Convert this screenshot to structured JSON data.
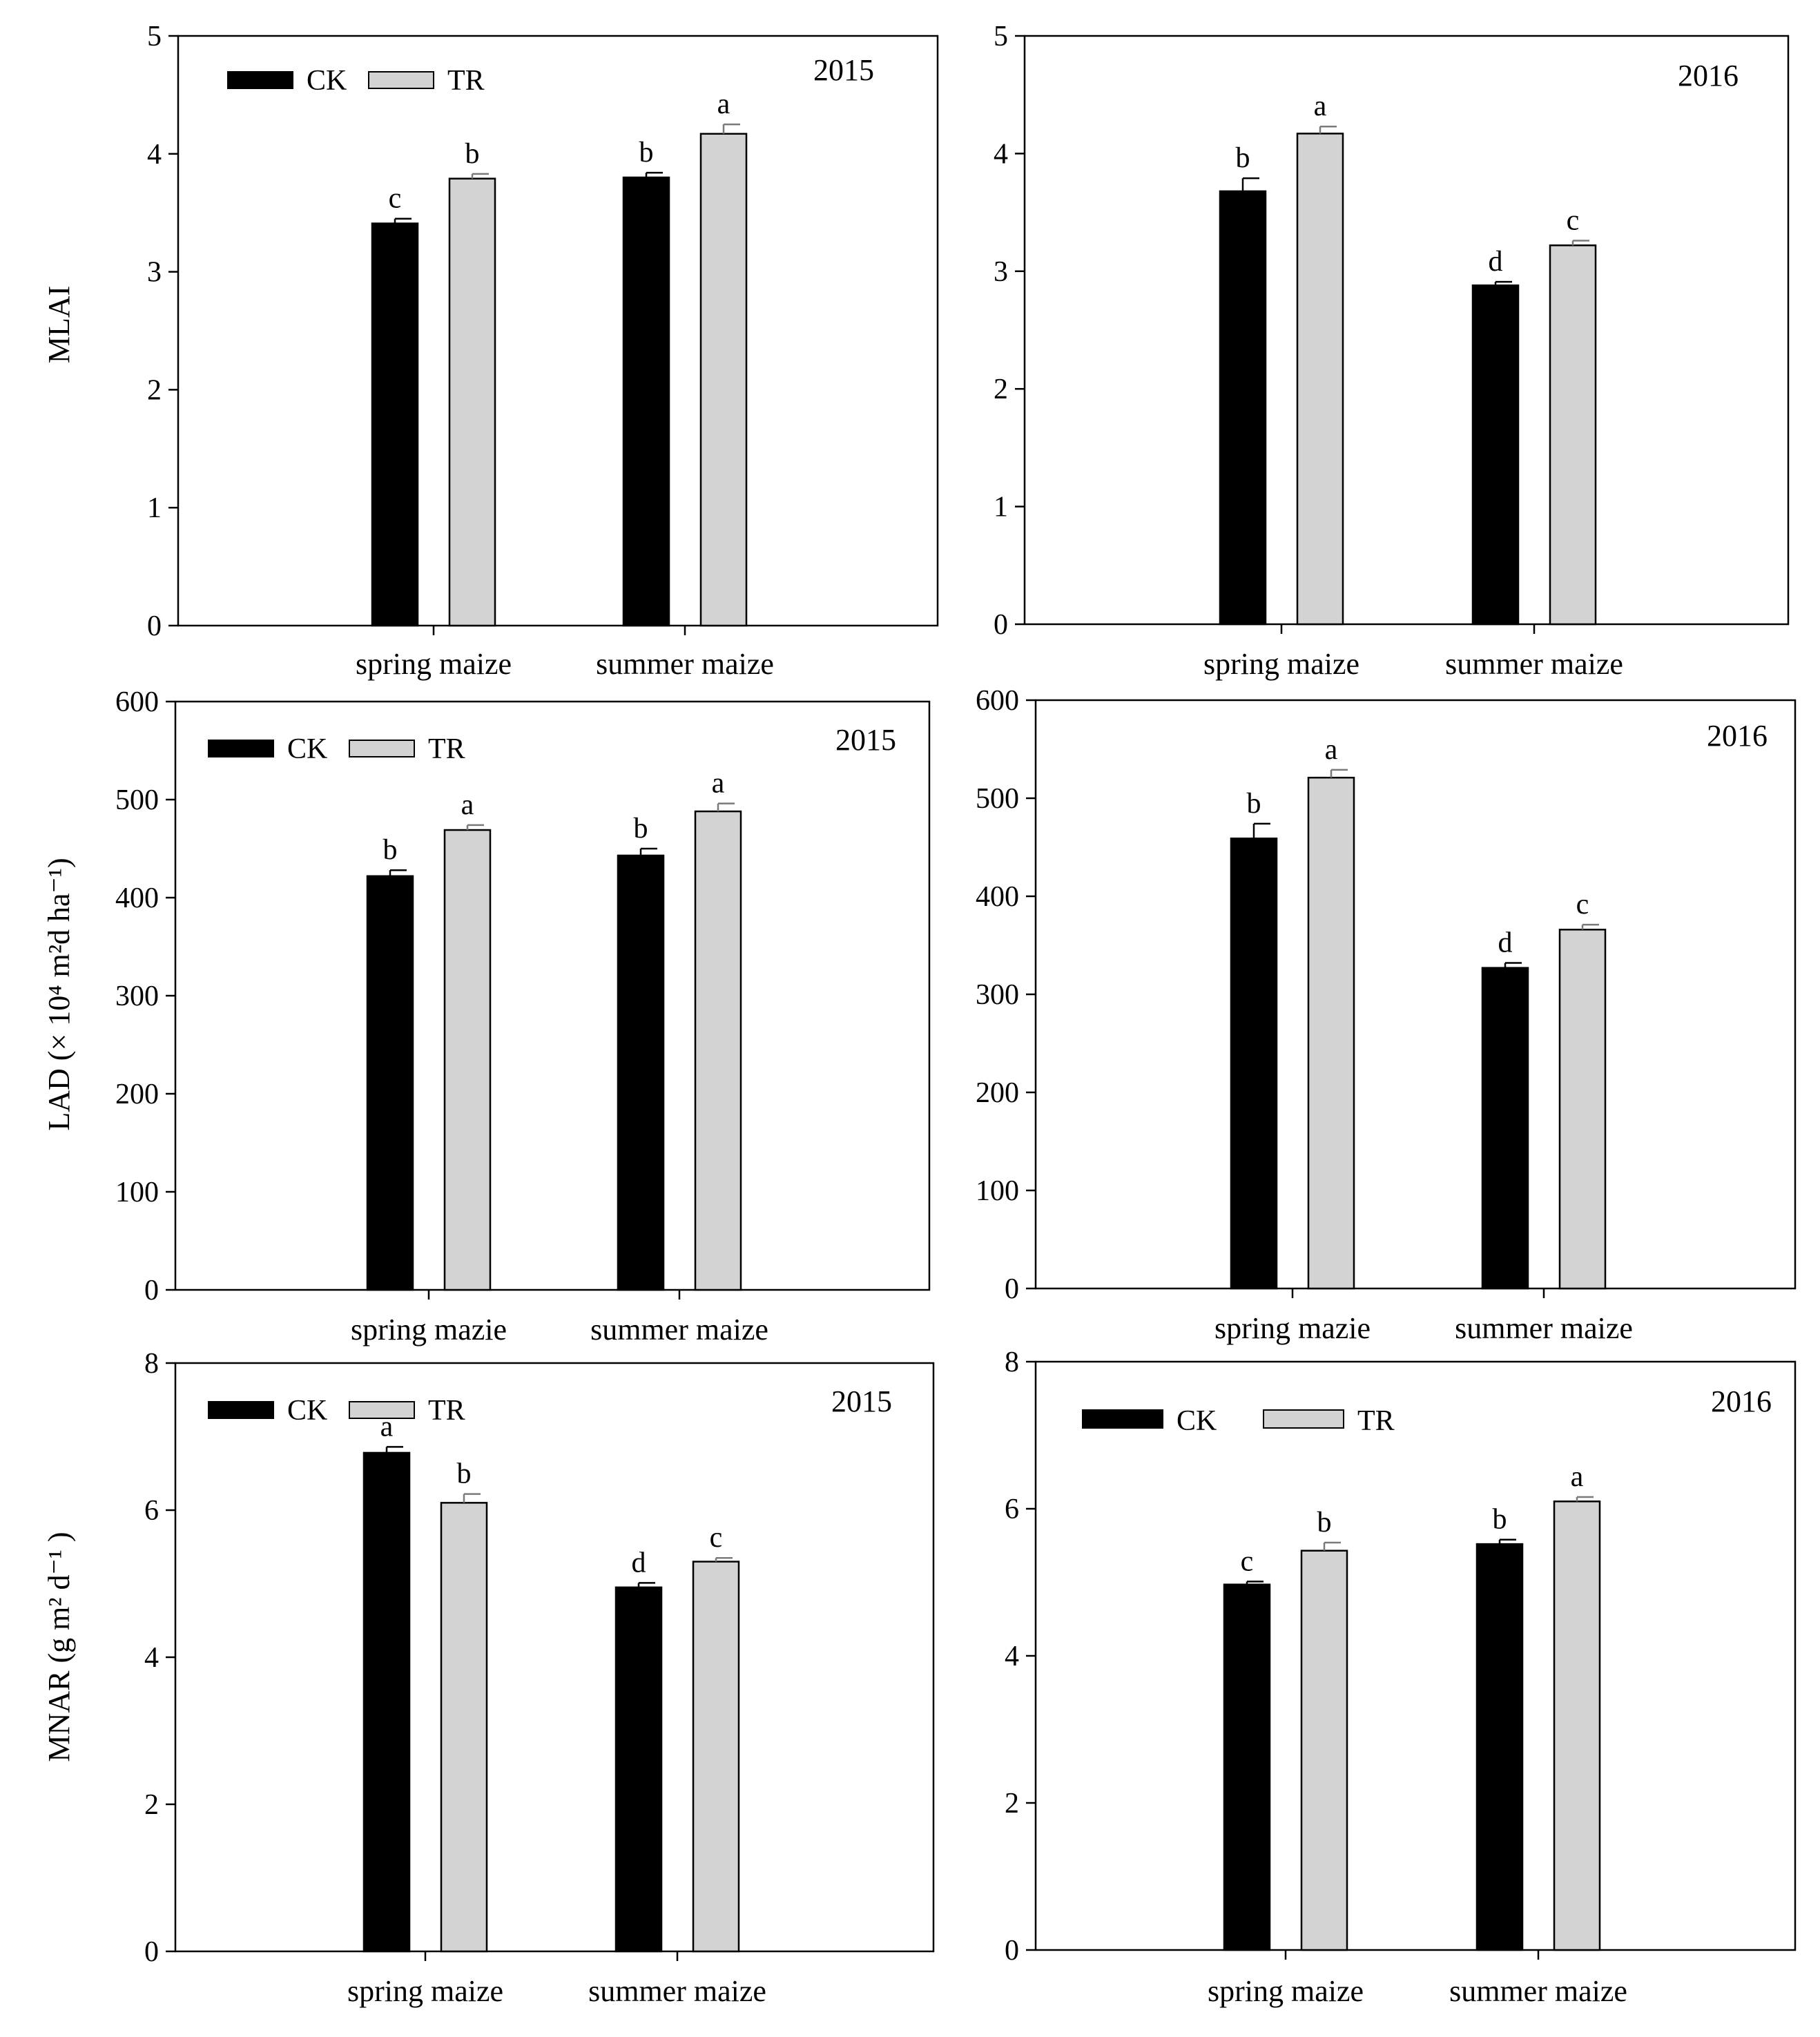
{
  "figure": {
    "description_panels": "2x3 grid of grouped bar charts comparing CK and TR"
  },
  "legend_labels": {
    "ck": "CK",
    "tr": "TR"
  },
  "colors": {
    "ck": "#000000",
    "tr": "#d3d3d3",
    "axis": "#000000"
  },
  "row_ylabels": {
    "mlai": "MLAI",
    "lad": "LAD (× 10⁴ m²d ha⁻¹)",
    "mnar": "MNAR (g m² d⁻¹ )"
  },
  "chart_data": [
    {
      "id": "mlai-2015",
      "type": "bar",
      "title": "2015",
      "ylabel": "MLAI",
      "categories": [
        "spring maize",
        "summer maize"
      ],
      "series": [
        {
          "name": "CK",
          "values": [
            3.41,
            3.8
          ],
          "errors": [
            0.04,
            0.04
          ],
          "letters": [
            "c",
            "b"
          ]
        },
        {
          "name": "TR",
          "values": [
            3.79,
            4.17
          ],
          "errors": [
            0.04,
            0.08
          ],
          "letters": [
            "b",
            "a"
          ]
        }
      ],
      "ylim": [
        0,
        5
      ],
      "yticks": [
        0,
        1,
        2,
        3,
        4,
        5
      ],
      "show_legend": true
    },
    {
      "id": "mlai-2016",
      "type": "bar",
      "title": "2016",
      "ylabel": "",
      "categories": [
        "spring maize",
        "summer maize"
      ],
      "series": [
        {
          "name": "CK",
          "values": [
            3.68,
            2.88
          ],
          "errors": [
            0.11,
            0.03
          ],
          "letters": [
            "b",
            "d"
          ]
        },
        {
          "name": "TR",
          "values": [
            4.17,
            3.22
          ],
          "errors": [
            0.06,
            0.04
          ],
          "letters": [
            "a",
            "c"
          ]
        }
      ],
      "ylim": [
        0,
        5
      ],
      "yticks": [
        0,
        1,
        2,
        3,
        4,
        5
      ],
      "show_legend": false
    },
    {
      "id": "lad-2015",
      "type": "bar",
      "title": "2015",
      "ylabel": "LAD",
      "categories": [
        "spring mazie",
        "summer maize"
      ],
      "series": [
        {
          "name": "CK",
          "values": [
            422,
            443
          ],
          "errors": [
            6,
            7
          ],
          "letters": [
            "b",
            "b"
          ]
        },
        {
          "name": "TR",
          "values": [
            469,
            488
          ],
          "errors": [
            5,
            8
          ],
          "letters": [
            "a",
            "a"
          ]
        }
      ],
      "ylim": [
        0,
        600
      ],
      "yticks": [
        0,
        100,
        200,
        300,
        400,
        500,
        600
      ],
      "show_legend": true
    },
    {
      "id": "lad-2016",
      "type": "bar",
      "title": "2016",
      "ylabel": "",
      "categories": [
        "spring mazie",
        "summer maize"
      ],
      "series": [
        {
          "name": "CK",
          "values": [
            459,
            327
          ],
          "errors": [
            15,
            5
          ],
          "letters": [
            "b",
            "d"
          ]
        },
        {
          "name": "TR",
          "values": [
            521,
            366
          ],
          "errors": [
            8,
            5
          ],
          "letters": [
            "a",
            "c"
          ]
        }
      ],
      "ylim": [
        0,
        600
      ],
      "yticks": [
        0,
        100,
        200,
        300,
        400,
        500,
        600
      ],
      "show_legend": false
    },
    {
      "id": "mnar-2015",
      "type": "bar",
      "title": "2015",
      "ylabel": "MNAR",
      "categories": [
        "spring maize",
        "summer maize"
      ],
      "series": [
        {
          "name": "CK",
          "values": [
            6.78,
            4.95
          ],
          "errors": [
            0.08,
            0.06
          ],
          "letters": [
            "a",
            "d"
          ]
        },
        {
          "name": "TR",
          "values": [
            6.1,
            5.3
          ],
          "errors": [
            0.12,
            0.05
          ],
          "letters": [
            "b",
            "c"
          ]
        }
      ],
      "ylim": [
        0,
        8
      ],
      "yticks": [
        0,
        2,
        4,
        6,
        8
      ],
      "show_legend": true
    },
    {
      "id": "mnar-2016",
      "type": "bar",
      "title": "2016",
      "ylabel": "",
      "categories": [
        "spring maize",
        "summer maize"
      ],
      "series": [
        {
          "name": "CK",
          "values": [
            4.97,
            5.52
          ],
          "errors": [
            0.04,
            0.06
          ],
          "letters": [
            "c",
            "b"
          ]
        },
        {
          "name": "TR",
          "values": [
            5.43,
            6.1
          ],
          "errors": [
            0.11,
            0.06
          ],
          "letters": [
            "b",
            "a"
          ]
        }
      ],
      "ylim": [
        0,
        8
      ],
      "yticks": [
        0,
        2,
        4,
        6,
        8
      ],
      "show_legend": true
    }
  ]
}
